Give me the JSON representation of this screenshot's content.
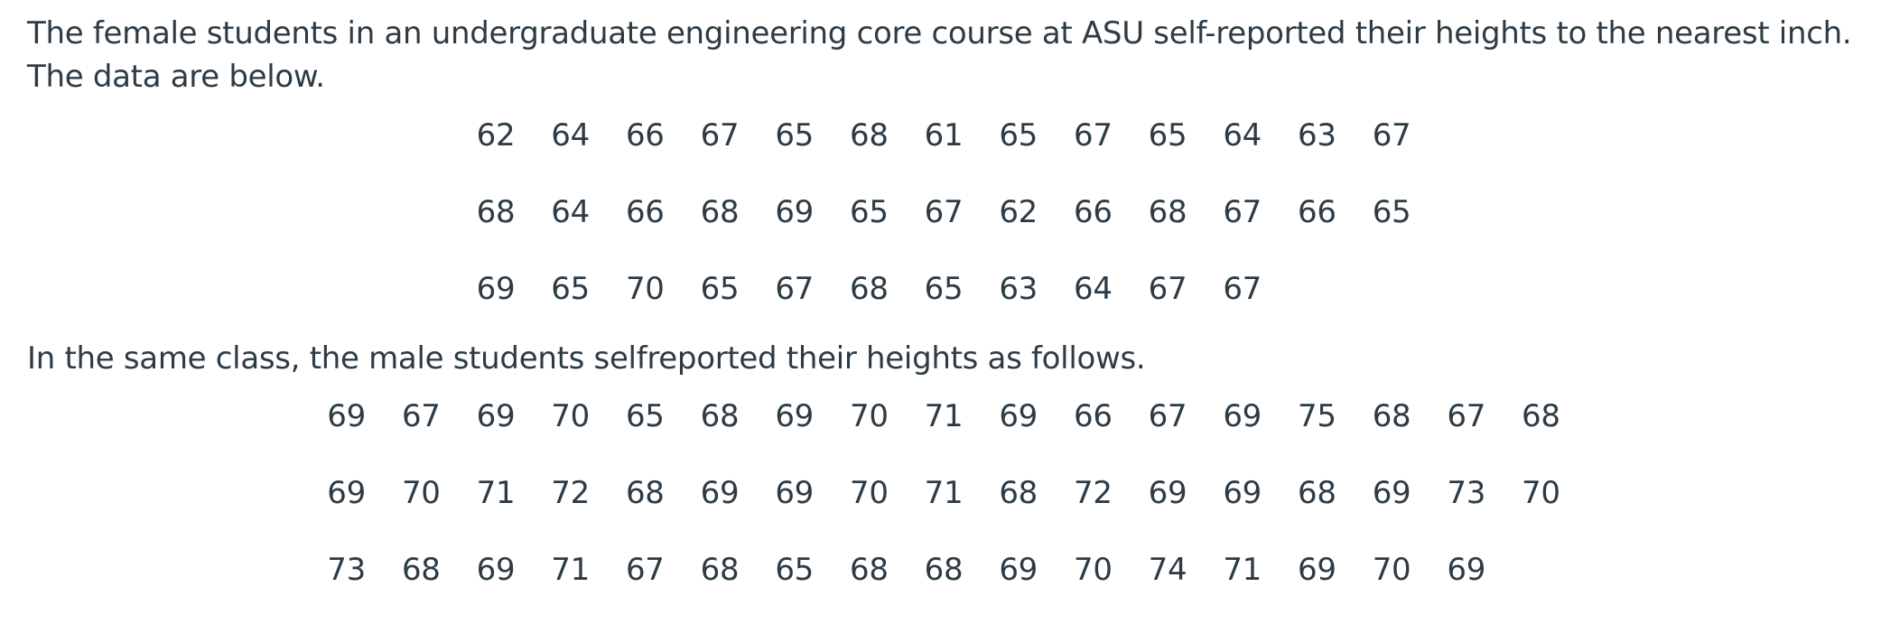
{
  "intro_text": "The female students in an undergraduate engineering core course at ASU self-reported their heights to the nearest inch. The data are below.",
  "female_rows": [
    [
      "62",
      "64",
      "66",
      "67",
      "65",
      "68",
      "61",
      "65",
      "67",
      "65",
      "64",
      "63",
      "67"
    ],
    [
      "68",
      "64",
      "66",
      "68",
      "69",
      "65",
      "67",
      "62",
      "66",
      "68",
      "67",
      "66",
      "65"
    ],
    [
      "69",
      "65",
      "70",
      "65",
      "67",
      "68",
      "65",
      "63",
      "64",
      "67",
      "67",
      "",
      ""
    ]
  ],
  "male_intro_text": "In the same class, the male students selfreported their heights as follows.",
  "male_rows": [
    [
      "69",
      "67",
      "69",
      "70",
      "65",
      "68",
      "69",
      "70",
      "71",
      "69",
      "66",
      "67",
      "69",
      "75",
      "68",
      "67",
      "68"
    ],
    [
      "69",
      "70",
      "71",
      "72",
      "68",
      "69",
      "69",
      "70",
      "71",
      "68",
      "72",
      "69",
      "69",
      "68",
      "69",
      "73",
      "70"
    ],
    [
      "73",
      "68",
      "69",
      "71",
      "67",
      "68",
      "65",
      "68",
      "68",
      "69",
      "70",
      "74",
      "71",
      "69",
      "70",
      "69",
      ""
    ]
  ]
}
